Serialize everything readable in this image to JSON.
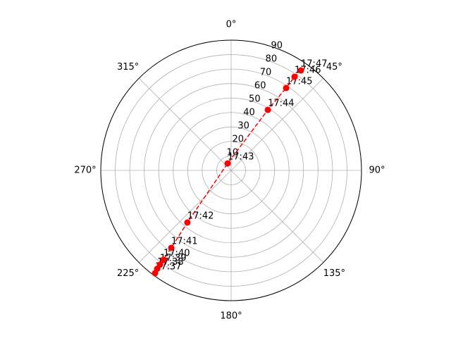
{
  "chart_data": {
    "type": "polar",
    "theta_zero": "N",
    "theta_direction": "clockwise",
    "rlim": [
      0,
      90
    ],
    "rticks": [
      10,
      20,
      30,
      40,
      50,
      60,
      70,
      80,
      90
    ],
    "rlabel_angle": 22.5,
    "thetaticks": [
      {
        "value": 0,
        "label": "0°"
      },
      {
        "value": 45,
        "label": "45°"
      },
      {
        "value": 90,
        "label": "90°"
      },
      {
        "value": 135,
        "label": "135°"
      },
      {
        "value": 180,
        "label": "180°"
      },
      {
        "value": 225,
        "label": "225°"
      },
      {
        "value": 270,
        "label": "270°"
      },
      {
        "value": 315,
        "label": "315°"
      }
    ],
    "grid": true,
    "series": [
      {
        "color": "#ff0000",
        "linestyle": "dashed",
        "marker": "circle",
        "labels": [
          "17:37",
          "17:38",
          "17:39",
          "17:40",
          "17:41",
          "17:42",
          "17:43",
          "17:44",
          "17:45",
          "17:46",
          "17:47"
        ],
        "theta": [
          216.5,
          216.9,
          217,
          217.1,
          217.7,
          220,
          333.4,
          31.2,
          33.7,
          34.1,
          34.9
        ],
        "r": [
          88.3,
          85,
          81.6,
          77.4,
          67.6,
          47,
          5.4,
          48.9,
          68.4,
          78.1,
          84.2
        ]
      }
    ]
  }
}
